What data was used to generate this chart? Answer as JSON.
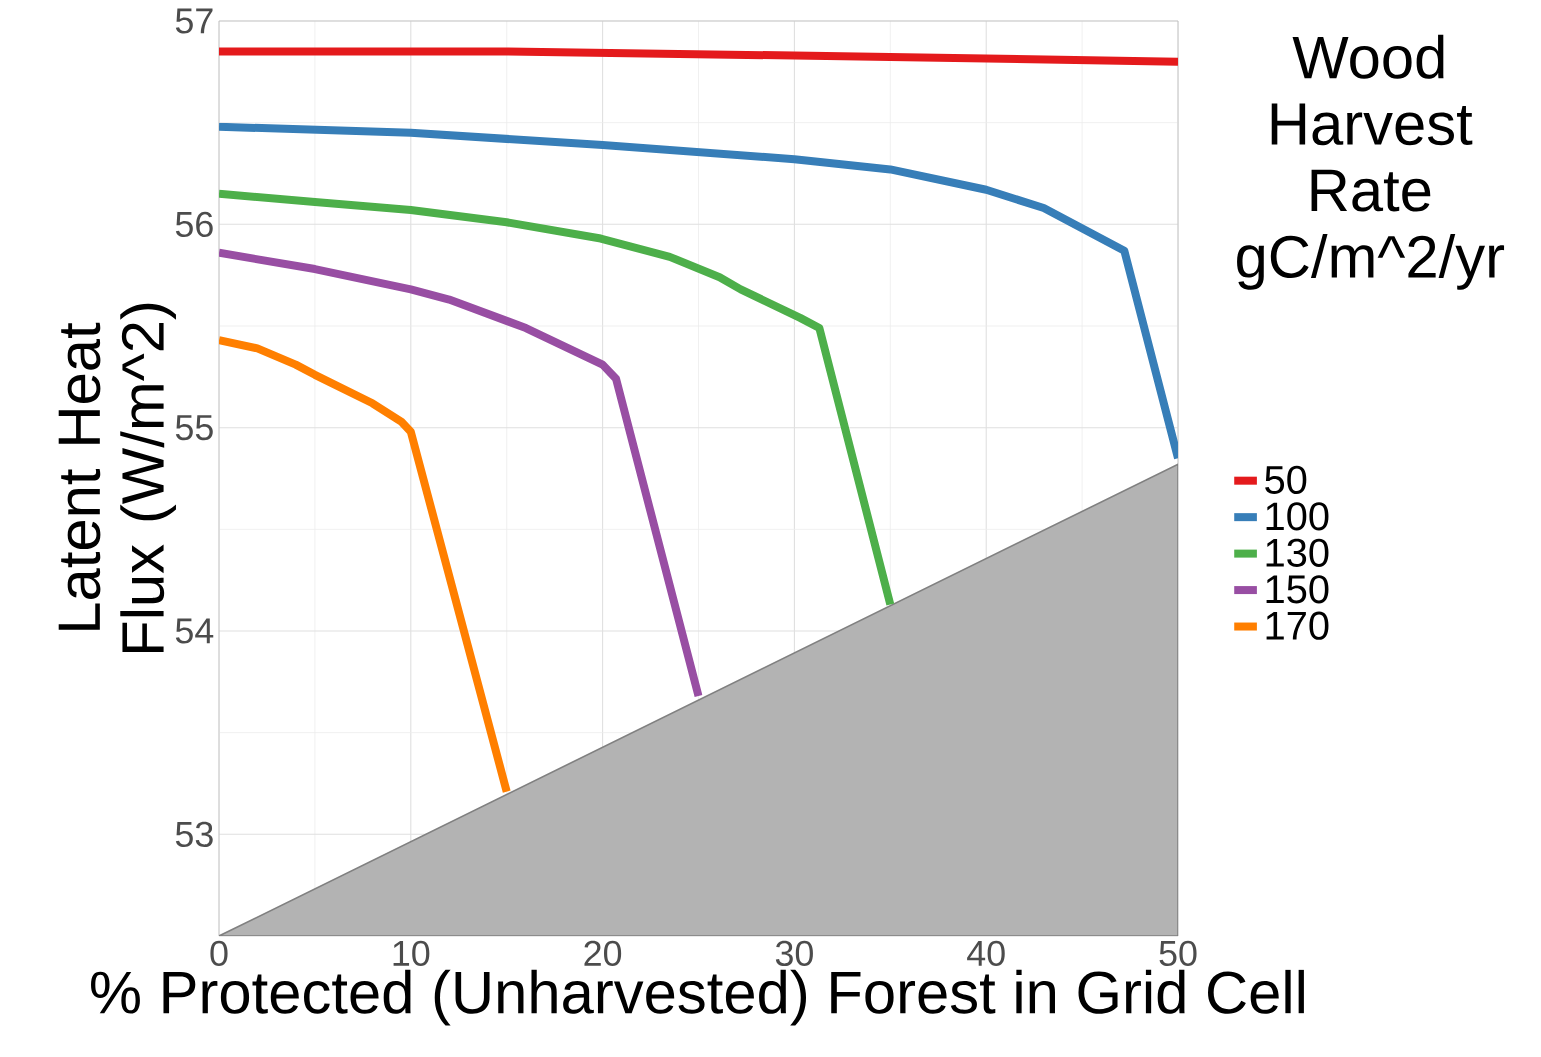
{
  "chart_data": {
    "type": "line",
    "xlabel": "% Protected (Unharvested) Forest in Grid Cell",
    "ylabel": "Latent Heat Flux (W/m^2)",
    "legend_title": "Wood Harvest Rate gC/m^2/yr",
    "legend": "right",
    "grid": true,
    "xlim": [
      0,
      50
    ],
    "ylim": [
      52.5,
      57
    ],
    "xticks": [
      0,
      10,
      20,
      30,
      40,
      50
    ],
    "yticks": [
      53,
      54,
      55,
      56,
      57
    ],
    "series": [
      {
        "type": "area",
        "color": "#b3b3b3",
        "x": [
          0,
          50
        ],
        "values": [
          52.5,
          54.82
        ]
      },
      {
        "name": "50",
        "color": "#e41a1c",
        "x": [
          0,
          15,
          30,
          50
        ],
        "values": [
          56.85,
          56.85,
          56.83,
          56.8
        ]
      },
      {
        "name": "100",
        "color": "#377eb8",
        "x": [
          0,
          10,
          20,
          30,
          35,
          40,
          43,
          47.2,
          50
        ],
        "values": [
          56.48,
          56.45,
          56.39,
          56.32,
          56.27,
          56.17,
          56.08,
          55.87,
          54.85
        ]
      },
      {
        "name": "130",
        "color": "#4daf4a",
        "x": [
          0,
          5,
          10,
          15,
          19.9,
          23.5,
          26.1,
          27.2,
          30.3,
          31.3,
          35
        ],
        "values": [
          56.15,
          56.11,
          56.07,
          56.01,
          55.93,
          55.84,
          55.74,
          55.68,
          55.54,
          55.49,
          54.13
        ]
      },
      {
        "name": "150",
        "color": "#984ea3",
        "x": [
          0,
          5,
          10,
          12,
          16,
          20,
          20.7,
          25
        ],
        "values": [
          55.86,
          55.78,
          55.68,
          55.63,
          55.49,
          55.31,
          55.24,
          53.68
        ]
      },
      {
        "name": "170",
        "color": "#ff7f00",
        "x": [
          0,
          2,
          4,
          5,
          8,
          9.5,
          10,
          15
        ],
        "values": [
          55.43,
          55.39,
          55.31,
          55.26,
          55.12,
          55.03,
          54.98,
          53.21
        ]
      }
    ]
  }
}
